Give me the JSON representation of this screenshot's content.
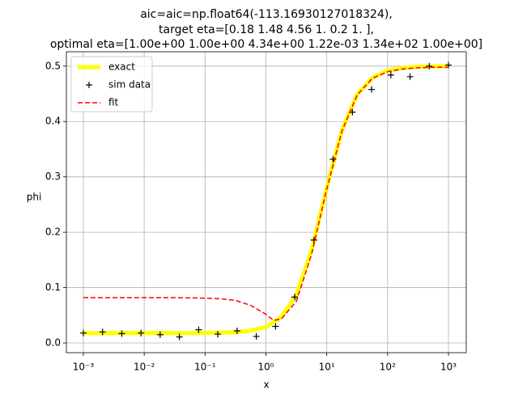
{
  "chart_data": {
    "type": "line",
    "title": [
      "aic=aic=np.float64(-113.16930127018324),",
      "target eta=[0.18 1.48 4.56 1.   0.2  1.  ],",
      "optimal eta=[1.00e+00 1.00e+00 4.34e+00 1.22e-03 1.34e+02 1.00e+00]"
    ],
    "x_label": "x",
    "y_label": "phi",
    "x_scale": "log",
    "grid": true,
    "legend": "upper left",
    "xlim": [
      0.000526,
      1960
    ],
    "ylim": [
      -0.0175,
      0.526
    ],
    "xticks": [
      {
        "value": 0.001,
        "label": "10⁻³"
      },
      {
        "value": 0.01,
        "label": "10⁻²"
      },
      {
        "value": 0.1,
        "label": "10⁻¹"
      },
      {
        "value": 1,
        "label": "10⁰"
      },
      {
        "value": 10,
        "label": "10¹"
      },
      {
        "value": 100,
        "label": "10²"
      },
      {
        "value": 1000,
        "label": "10³"
      }
    ],
    "yticks": [
      {
        "value": 0,
        "label": "0.0"
      },
      {
        "value": 0.1,
        "label": "0.1"
      },
      {
        "value": 0.2,
        "label": "0.2"
      },
      {
        "value": 0.3,
        "label": "0.3"
      },
      {
        "value": 0.4,
        "label": "0.4"
      },
      {
        "value": 0.5,
        "label": "0.5"
      }
    ],
    "series": [
      {
        "name": "exact",
        "color": "#ffff00",
        "style": "line",
        "x": [
          0.001,
          0.00178,
          0.00316,
          0.00562,
          0.01,
          0.0178,
          0.0316,
          0.0562,
          0.1,
          0.178,
          0.316,
          0.562,
          1,
          1.78,
          3.16,
          5.62,
          10,
          17.8,
          31.6,
          56.2,
          100,
          178,
          316,
          562,
          1000
        ],
        "values": [
          0.018,
          0.018,
          0.018,
          0.018,
          0.018,
          0.018,
          0.018,
          0.018,
          0.0182,
          0.0186,
          0.0196,
          0.0223,
          0.0292,
          0.0467,
          0.0867,
          0.167,
          0.281,
          0.384,
          0.449,
          0.479,
          0.492,
          0.497,
          0.499,
          0.4995,
          0.4998
        ]
      },
      {
        "name": "sim data",
        "color": "#000000",
        "style": "marker",
        "x": [
          0.001,
          0.00207,
          0.00428,
          0.00886,
          0.0183,
          0.0379,
          0.0785,
          0.162,
          0.336,
          0.695,
          1.44,
          2.98,
          6.16,
          12.7,
          26.4,
          54.6,
          113,
          234,
          483,
          1000
        ],
        "values": [
          0.018,
          0.02,
          0.017,
          0.018,
          0.015,
          0.011,
          0.024,
          0.016,
          0.022,
          0.012,
          0.03,
          0.083,
          0.186,
          0.332,
          0.417,
          0.458,
          0.484,
          0.481,
          0.5,
          0.502
        ]
      },
      {
        "name": "fit",
        "color": "#ff0000",
        "style": "dashed",
        "x": [
          0.001,
          0.00178,
          0.00316,
          0.00562,
          0.01,
          0.0178,
          0.0316,
          0.0562,
          0.1,
          0.178,
          0.316,
          0.562,
          1,
          1.33,
          1.78,
          3.16,
          5.62,
          10,
          17.8,
          31.6,
          56.2,
          100,
          178,
          316,
          562,
          1000
        ],
        "values": [
          0.082,
          0.082,
          0.082,
          0.082,
          0.082,
          0.082,
          0.082,
          0.0815,
          0.081,
          0.08,
          0.077,
          0.068,
          0.052,
          0.041,
          0.043,
          0.075,
          0.16,
          0.278,
          0.383,
          0.448,
          0.478,
          0.49,
          0.495,
          0.497,
          0.498,
          0.498
        ]
      }
    ]
  }
}
